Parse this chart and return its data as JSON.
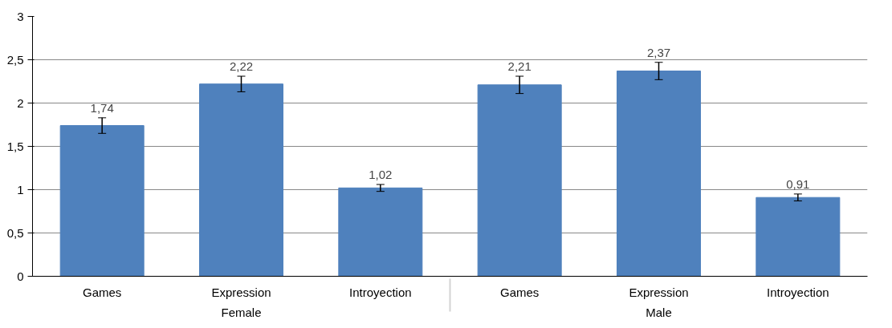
{
  "chart_data": {
    "type": "bar",
    "categories": [
      "Games",
      "Expression",
      "Introyection",
      "Games",
      "Expression",
      "Introyection"
    ],
    "annotations": [
      "Female",
      "Male"
    ],
    "values": [
      1.74,
      2.22,
      1.02,
      2.21,
      2.37,
      0.91
    ],
    "errors": [
      0.09,
      0.09,
      0.04,
      0.1,
      0.1,
      0.04
    ],
    "value_labels": [
      "1,74",
      "2,22",
      "1,02",
      "2,21",
      "2,37",
      "0,91"
    ],
    "color": "#4f81bd",
    "ylim": [
      0,
      3
    ],
    "yticks": [
      0,
      {
        "value": 0.5,
        "label": "0,5"
      },
      1,
      {
        "value": 1.5,
        "label": "1,5"
      },
      2,
      {
        "value": 2.5,
        "label": "2,5"
      },
      3
    ],
    "grid": "y"
  }
}
